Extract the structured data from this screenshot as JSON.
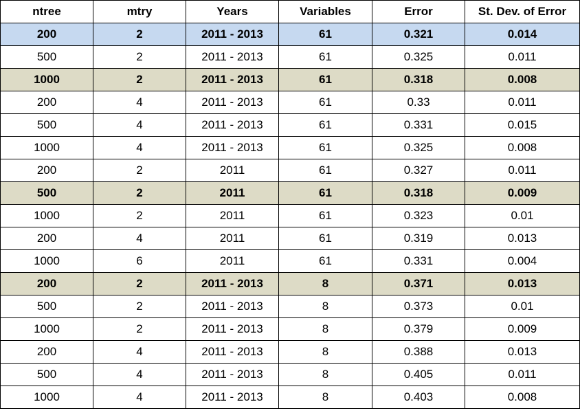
{
  "colors": {
    "border": "#000000",
    "highlight_blue": "#c6d9f0",
    "highlight_tan": "#dddbc6",
    "background": "#ffffff"
  },
  "table": {
    "headers": [
      "ntree",
      "mtry",
      "Years",
      "Variables",
      "Error",
      "St. Dev. of Error"
    ],
    "rows": [
      {
        "cells": [
          "200",
          "2",
          "2011 - 2013",
          "61",
          "0.321",
          "0.014"
        ],
        "highlight": "blue"
      },
      {
        "cells": [
          "500",
          "2",
          "2011 - 2013",
          "61",
          "0.325",
          "0.011"
        ],
        "highlight": "none"
      },
      {
        "cells": [
          "1000",
          "2",
          "2011 - 2013",
          "61",
          "0.318",
          "0.008"
        ],
        "highlight": "tan"
      },
      {
        "cells": [
          "200",
          "4",
          "2011 - 2013",
          "61",
          "0.33",
          "0.011"
        ],
        "highlight": "none"
      },
      {
        "cells": [
          "500",
          "4",
          "2011 - 2013",
          "61",
          "0.331",
          "0.015"
        ],
        "highlight": "none"
      },
      {
        "cells": [
          "1000",
          "4",
          "2011 - 2013",
          "61",
          "0.325",
          "0.008"
        ],
        "highlight": "none"
      },
      {
        "cells": [
          "200",
          "2",
          "2011",
          "61",
          "0.327",
          "0.011"
        ],
        "highlight": "none"
      },
      {
        "cells": [
          "500",
          "2",
          "2011",
          "61",
          "0.318",
          "0.009"
        ],
        "highlight": "tan"
      },
      {
        "cells": [
          "1000",
          "2",
          "2011",
          "61",
          "0.323",
          "0.01"
        ],
        "highlight": "none"
      },
      {
        "cells": [
          "200",
          "4",
          "2011",
          "61",
          "0.319",
          "0.013"
        ],
        "highlight": "none"
      },
      {
        "cells": [
          "1000",
          "6",
          "2011",
          "61",
          "0.331",
          "0.004"
        ],
        "highlight": "none"
      },
      {
        "cells": [
          "200",
          "2",
          "2011 - 2013",
          "8",
          "0.371",
          "0.013"
        ],
        "highlight": "tan"
      },
      {
        "cells": [
          "500",
          "2",
          "2011 - 2013",
          "8",
          "0.373",
          "0.01"
        ],
        "highlight": "none"
      },
      {
        "cells": [
          "1000",
          "2",
          "2011 - 2013",
          "8",
          "0.379",
          "0.009"
        ],
        "highlight": "none"
      },
      {
        "cells": [
          "200",
          "4",
          "2011 - 2013",
          "8",
          "0.388",
          "0.013"
        ],
        "highlight": "none"
      },
      {
        "cells": [
          "500",
          "4",
          "2011 - 2013",
          "8",
          "0.405",
          "0.011"
        ],
        "highlight": "none"
      },
      {
        "cells": [
          "1000",
          "4",
          "2011 - 2013",
          "8",
          "0.403",
          "0.008"
        ],
        "highlight": "none"
      }
    ]
  }
}
